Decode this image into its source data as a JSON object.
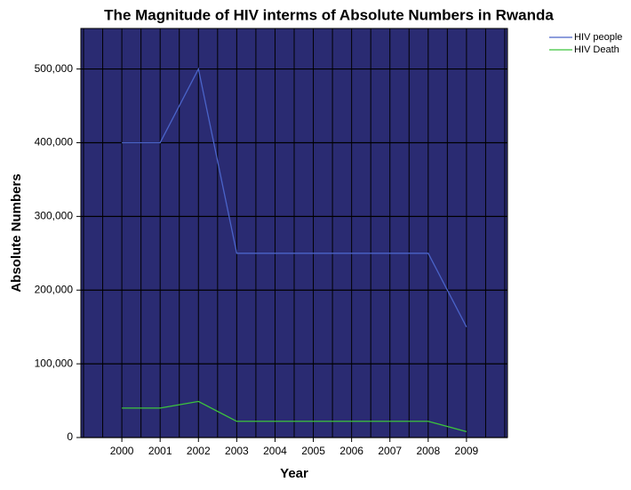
{
  "chart_data": {
    "type": "line",
    "title": "The Magnitude of HIV interms of Absolute Numbers in Rwanda",
    "x_label": "Year",
    "y_label": "Absolute Numbers",
    "categories": [
      "2000",
      "2001",
      "2002",
      "2003",
      "2004",
      "2005",
      "2006",
      "2007",
      "2008",
      "2009"
    ],
    "series": [
      {
        "name": "HIV people",
        "color": "#4a63c8",
        "values": [
          400000,
          400000,
          500000,
          250000,
          250000,
          250000,
          250000,
          250000,
          250000,
          150000
        ]
      },
      {
        "name": "HIV Death",
        "color": "#3cc43c",
        "values": [
          40000,
          40000,
          49000,
          22000,
          22000,
          22000,
          22000,
          22000,
          22000,
          8000
        ]
      }
    ],
    "ylim": [
      0,
      555000
    ],
    "yticks": [
      0,
      {
        "value": 100000,
        "label": "100,000"
      },
      {
        "value": 200000,
        "label": "200,000"
      },
      {
        "value": 300000,
        "label": "300,000"
      },
      {
        "value": 400000,
        "label": "400,000"
      },
      {
        "value": 500000,
        "label": "500,000"
      }
    ],
    "grid": true,
    "legend": "top-right",
    "plot_background": "#2a2b72"
  }
}
